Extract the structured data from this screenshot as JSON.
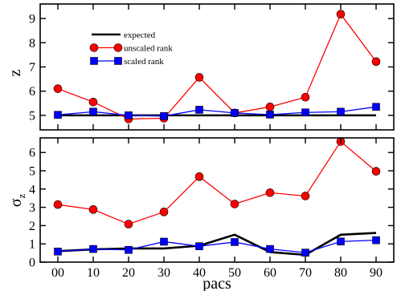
{
  "chart_data": [
    {
      "type": "line",
      "ylabel": "z",
      "xlim": [
        -5,
        95
      ],
      "ylim": [
        4.4,
        9.6
      ],
      "yticks": [
        5,
        6,
        7,
        8,
        9
      ],
      "x": [
        0,
        10,
        20,
        30,
        40,
        50,
        60,
        70,
        80,
        90
      ],
      "legend": "top-left",
      "series": [
        {
          "name": "expected",
          "color": "#000000",
          "marker": "none",
          "values": [
            5.0,
            5.0,
            5.0,
            5.0,
            5.0,
            5.0,
            5.0,
            5.0,
            5.0,
            5.0
          ]
        },
        {
          "name": "unscaled rank",
          "color": "#ff0000",
          "marker": "circle",
          "values": [
            6.1,
            5.55,
            4.85,
            4.88,
            6.57,
            5.1,
            5.35,
            5.75,
            9.18,
            7.22
          ]
        },
        {
          "name": "scaled rank",
          "color": "#0000ff",
          "marker": "square",
          "values": [
            5.02,
            5.15,
            5.0,
            4.97,
            5.23,
            5.1,
            5.03,
            5.12,
            5.15,
            5.35
          ]
        }
      ]
    },
    {
      "type": "line",
      "ylabel": "σ",
      "ylabel_sub": "z",
      "xlabel": "pacs",
      "xlim": [
        -5,
        95
      ],
      "ylim": [
        0,
        6.8
      ],
      "yticks": [
        0,
        1,
        2,
        3,
        4,
        5,
        6
      ],
      "x": [
        0,
        10,
        20,
        30,
        40,
        50,
        60,
        70,
        80,
        90
      ],
      "xticklabels": [
        "00",
        "10",
        "20",
        "30",
        "40",
        "50",
        "60",
        "70",
        "80",
        "90"
      ],
      "series": [
        {
          "name": "expected",
          "color": "#000000",
          "marker": "none",
          "values": [
            0.6,
            0.7,
            0.75,
            0.75,
            0.9,
            1.5,
            0.55,
            0.4,
            1.5,
            1.6
          ]
        },
        {
          "name": "unscaled rank",
          "color": "#ff0000",
          "marker": "circle",
          "values": [
            3.15,
            2.88,
            2.08,
            2.75,
            4.68,
            3.18,
            3.8,
            3.62,
            6.6,
            4.97
          ]
        },
        {
          "name": "scaled rank",
          "color": "#0000ff",
          "marker": "square",
          "values": [
            0.58,
            0.72,
            0.67,
            1.12,
            0.87,
            1.1,
            0.72,
            0.52,
            1.13,
            1.2
          ]
        }
      ]
    }
  ]
}
